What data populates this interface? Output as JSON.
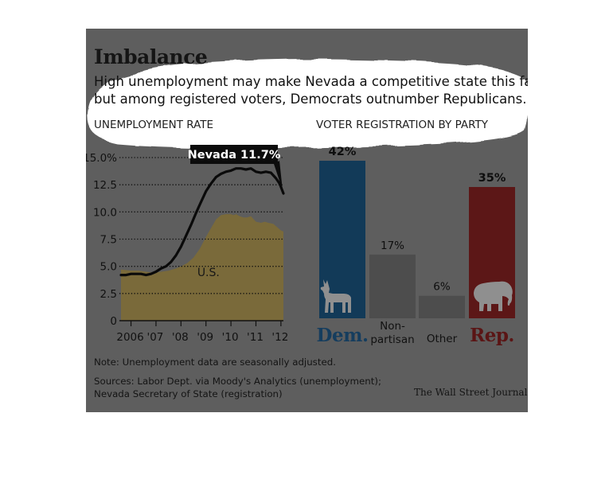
{
  "headline": "Imbalance",
  "subtitle_lines": [
    "High unemployment may make Nevada a competitive state this fall,",
    "but among registered voters, Democrats outnumber Republicans."
  ],
  "credit": "The Wall Street Journal",
  "note": "Note: Unemployment data are seasonally adjusted.",
  "sources_lines": [
    "Sources: Labor Dept. via Moody's Analytics (unemployment);",
    "Nevada Secretary of State (registration)"
  ],
  "colors": {
    "background": "#5e5e5e",
    "us_area": "#7a6a3a",
    "nevada_line": "#0a0a0a",
    "dem": "#123a58",
    "dem_label": "#153d5e",
    "nonpartisan": "#4d4d4d",
    "other": "#4d4d4d",
    "rep": "#5c1717",
    "rep_label": "#5a1515",
    "highlight": "#ffffff"
  },
  "chart_data": [
    {
      "type": "line",
      "title": "UNEMPLOYMENT RATE",
      "ylim": [
        0,
        15
      ],
      "y_ticks": [
        "0",
        "2.5",
        "5.0",
        "7.5",
        "10.0",
        "12.5",
        "15.0%"
      ],
      "y_tick_values": [
        0,
        2.5,
        5,
        7.5,
        10,
        12.5,
        15
      ],
      "x_ticks": [
        "2006",
        "'07",
        "'08",
        "'09",
        "'10",
        "'11",
        "'12"
      ],
      "x_tick_values": [
        2006,
        2007,
        2008,
        2009,
        2010,
        2011,
        2012
      ],
      "xlim": [
        2005.6,
        2012.1
      ],
      "grid": "dotted horizontal",
      "series": [
        {
          "name": "U.S.",
          "style": "area",
          "x": [
            2005.6,
            2006.0,
            2006.3,
            2006.6,
            2006.9,
            2007.2,
            2007.5,
            2007.8,
            2008.0,
            2008.25,
            2008.5,
            2008.75,
            2009.0,
            2009.2,
            2009.4,
            2009.6,
            2009.8,
            2010.0,
            2010.1,
            2010.2,
            2010.35,
            2010.5,
            2010.65,
            2010.8,
            2011.0,
            2011.2,
            2011.35,
            2011.5,
            2011.7,
            2011.85,
            2012.0,
            2012.1
          ],
          "values": [
            4.7,
            4.6,
            4.6,
            4.5,
            4.4,
            4.5,
            4.6,
            4.8,
            5.0,
            5.3,
            5.8,
            6.6,
            7.7,
            8.5,
            9.3,
            9.7,
            9.8,
            9.8,
            9.7,
            9.8,
            9.6,
            9.5,
            9.5,
            9.6,
            9.1,
            9.0,
            9.1,
            9.0,
            8.9,
            8.6,
            8.3,
            8.2
          ]
        },
        {
          "name": "Nevada",
          "style": "line",
          "label": "Nevada 11.7%",
          "x": [
            2005.6,
            2005.8,
            2006.0,
            2006.2,
            2006.4,
            2006.6,
            2006.8,
            2007.0,
            2007.2,
            2007.4,
            2007.6,
            2007.8,
            2008.0,
            2008.2,
            2008.4,
            2008.6,
            2008.8,
            2009.0,
            2009.2,
            2009.4,
            2009.6,
            2009.8,
            2010.0,
            2010.2,
            2010.4,
            2010.6,
            2010.8,
            2011.0,
            2011.2,
            2011.4,
            2011.6,
            2011.8,
            2011.95,
            2012.1
          ],
          "values": [
            4.2,
            4.2,
            4.3,
            4.3,
            4.3,
            4.2,
            4.3,
            4.5,
            4.8,
            5.0,
            5.4,
            6.0,
            6.8,
            7.8,
            8.8,
            9.9,
            10.9,
            11.9,
            12.6,
            13.2,
            13.5,
            13.7,
            13.8,
            14.0,
            14.0,
            13.9,
            14.0,
            13.7,
            13.6,
            13.7,
            13.6,
            13.1,
            12.6,
            11.7
          ]
        }
      ]
    },
    {
      "type": "bar",
      "title": "VOTER REGISTRATION BY PARTY",
      "categories": [
        "Dem.",
        "Non-partisan",
        "Other",
        "Rep."
      ],
      "category_label_lines": [
        [
          "Dem."
        ],
        [
          "Non-",
          "partisan"
        ],
        [
          "Other"
        ],
        [
          "Rep."
        ]
      ],
      "values": [
        42,
        17,
        6,
        35
      ],
      "value_labels": [
        "42%",
        "17%",
        "6%",
        "35%"
      ],
      "icons": [
        "donkey-icon",
        "",
        "",
        "elephant-icon"
      ]
    }
  ]
}
